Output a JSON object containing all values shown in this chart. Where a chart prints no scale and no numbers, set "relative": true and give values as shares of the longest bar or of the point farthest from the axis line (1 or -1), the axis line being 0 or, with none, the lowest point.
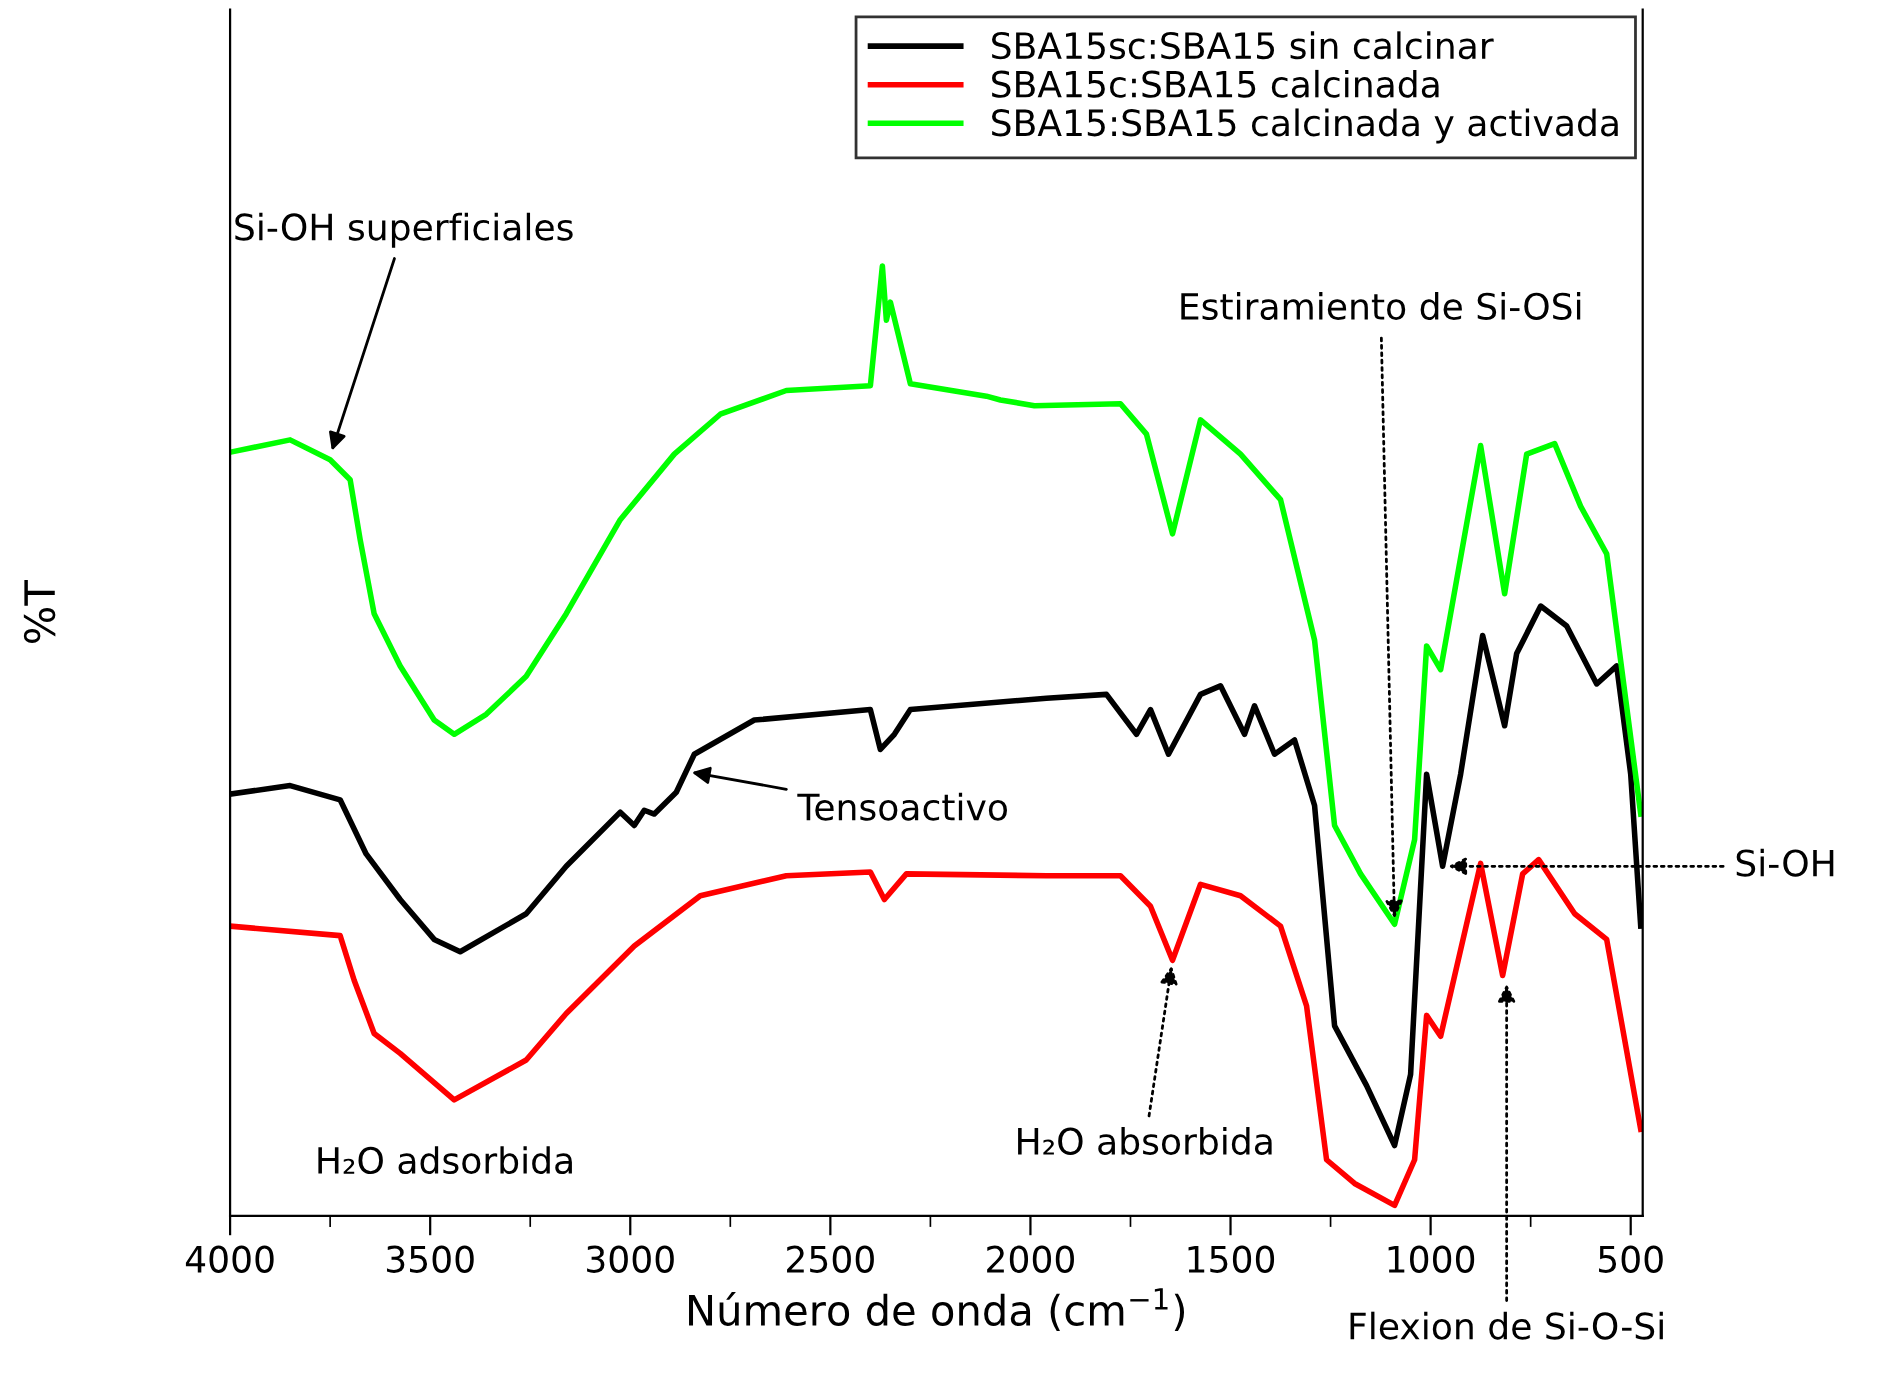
{
  "chart_data": {
    "type": "line",
    "relative": true,
    "xlabel": "Número de onda (cm$^{−1}$)",
    "ylabel": "%T",
    "xlim": [
      4000,
      470
    ],
    "xticks": [
      4000,
      3500,
      3000,
      2500,
      2000,
      1500,
      1000,
      500
    ],
    "legend": "top right",
    "grid": false,
    "series": [
      {
        "name": "SBA15sc:SBA15 sin calcinar",
        "color": "#000000",
        "x": [
          4000,
          3850,
          3725,
          3660,
          3575,
          3490,
          3425,
          3260,
          3160,
          3025,
          2990,
          2965,
          2940,
          2885,
          2840,
          2690,
          2400,
          2375,
          2340,
          2300,
          1960,
          1810,
          1735,
          1700,
          1655,
          1575,
          1525,
          1465,
          1440,
          1390,
          1340,
          1290,
          1240,
          1160,
          1090,
          1050,
          1010,
          970,
          925,
          870,
          815,
          785,
          725,
          660,
          585,
          535,
          500,
          475
        ],
        "values": [
          0.444,
          0.453,
          0.438,
          0.381,
          0.333,
          0.291,
          0.278,
          0.318,
          0.368,
          0.425,
          0.411,
          0.427,
          0.423,
          0.446,
          0.486,
          0.522,
          0.533,
          0.491,
          0.507,
          0.533,
          0.545,
          0.549,
          0.507,
          0.533,
          0.486,
          0.549,
          0.558,
          0.507,
          0.537,
          0.486,
          0.501,
          0.432,
          0.2,
          0.137,
          0.074,
          0.149,
          0.465,
          0.368,
          0.465,
          0.611,
          0.516,
          0.592,
          0.642,
          0.621,
          0.56,
          0.579,
          0.465,
          0.305
        ]
      },
      {
        "name": "SBA15c:SBA15 calcinada",
        "color": "#ff0000",
        "x": [
          4000,
          3725,
          3690,
          3640,
          3575,
          3440,
          3260,
          3160,
          2990,
          2825,
          2610,
          2400,
          2365,
          2310,
          1960,
          1775,
          1700,
          1645,
          1575,
          1475,
          1375,
          1310,
          1260,
          1190,
          1090,
          1040,
          1010,
          975,
          875,
          820,
          770,
          730,
          640,
          560,
          475
        ],
        "values": [
          0.305,
          0.295,
          0.248,
          0.192,
          0.171,
          0.122,
          0.164,
          0.213,
          0.284,
          0.337,
          0.358,
          0.362,
          0.333,
          0.36,
          0.358,
          0.358,
          0.326,
          0.269,
          0.349,
          0.337,
          0.305,
          0.221,
          0.059,
          0.034,
          0.011,
          0.059,
          0.211,
          0.189,
          0.371,
          0.253,
          0.36,
          0.375,
          0.318,
          0.291,
          0.091
        ]
      },
      {
        "name": "SBA15:SBA15 calcinada y activada",
        "color": "#00ff00",
        "x": [
          4000,
          3850,
          3750,
          3700,
          3675,
          3640,
          3575,
          3490,
          3440,
          3360,
          3260,
          3160,
          3025,
          2890,
          2775,
          2610,
          2400,
          2370,
          2360,
          2350,
          2300,
          2110,
          2075,
          1990,
          1775,
          1710,
          1645,
          1575,
          1475,
          1375,
          1290,
          1240,
          1175,
          1090,
          1040,
          1010,
          975,
          875,
          815,
          760,
          690,
          625,
          560,
          475
        ],
        "values": [
          0.804,
          0.817,
          0.796,
          0.775,
          0.712,
          0.634,
          0.579,
          0.522,
          0.507,
          0.528,
          0.568,
          0.634,
          0.733,
          0.802,
          0.844,
          0.869,
          0.874,
          1.0,
          0.943,
          0.962,
          0.876,
          0.863,
          0.859,
          0.853,
          0.855,
          0.823,
          0.718,
          0.838,
          0.802,
          0.754,
          0.606,
          0.411,
          0.36,
          0.307,
          0.396,
          0.6,
          0.575,
          0.811,
          0.655,
          0.802,
          0.813,
          0.747,
          0.697,
          0.423
        ]
      }
    ],
    "annotations": [
      {
        "text": "Si-OH superficiales",
        "x": 3750,
        "y": 0.8
      },
      {
        "text": "Tensoactivo",
        "x": 2860,
        "y": 0.468
      },
      {
        "text": "Estiramiento de Si-OSi",
        "x": 1090,
        "y": 0.307
      },
      {
        "text": "H₂O absorbida",
        "x": 1645,
        "y": 0.269
      },
      "H₂O adsorbida",
      {
        "text": "Si-OH",
        "x": 970,
        "y": 0.368
      },
      {
        "text": "Flexion de Si-O-Si",
        "x": 810,
        "y": 0.25
      }
    ]
  }
}
